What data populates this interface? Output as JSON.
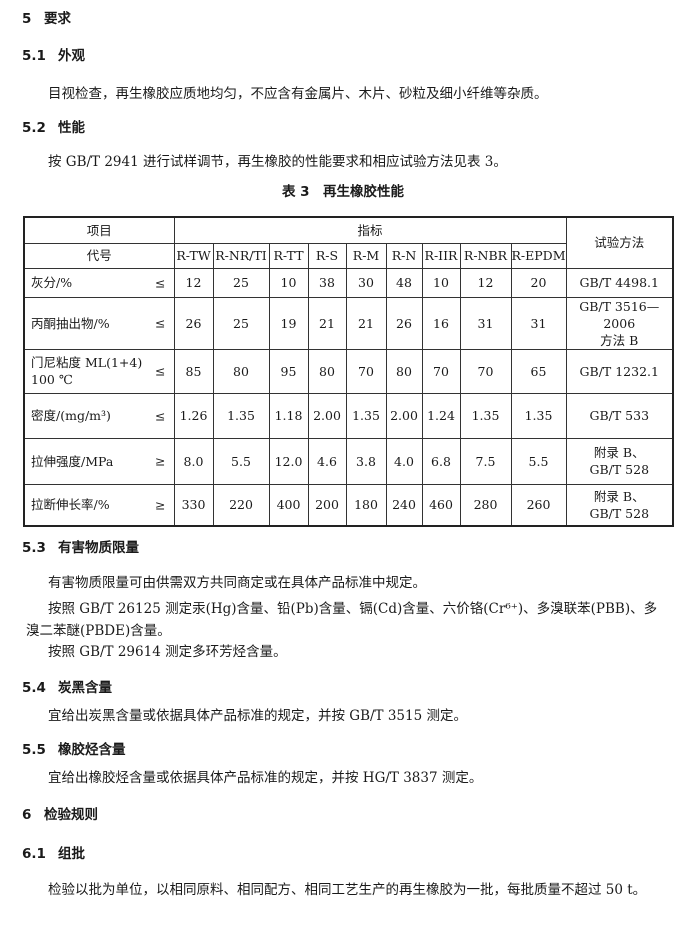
{
  "sections": {
    "s5": {
      "num": "5",
      "title": "要求"
    },
    "s51": {
      "num": "5.1",
      "title": "外观",
      "text": "目视检查，再生橡胶应质地均匀，不应含有金属片、木片、砂粒及细小纤维等杂质。"
    },
    "s52": {
      "num": "5.2",
      "title": "性能",
      "text": "按 GB/T 2941 进行试样调节，再生橡胶的性能要求和相应试验方法见表 3。"
    },
    "s53": {
      "num": "5.3",
      "title": "有害物质限量",
      "lines": [
        "有害物质限量可由供需双方共同商定或在具体产品标准中规定。",
        "按照 GB/T 26125 测定汞(Hg)含量、铅(Pb)含量、镉(Cd)含量、六价铬(Cr⁶⁺)、多溴联苯(PBB)、多",
        "溴二苯醚(PBDE)含量。",
        "按照 GB/T 29614 测定多环芳烃含量。"
      ]
    },
    "s54": {
      "num": "5.4",
      "title": "炭黑含量",
      "text": "宜给出炭黑含量或依据具体产品标准的规定，并按 GB/T 3515 测定。"
    },
    "s55": {
      "num": "5.5",
      "title": "橡胶烃含量",
      "text": "宜给出橡胶烃含量或依据具体产品标准的规定，并按 HG/T 3837 测定。"
    },
    "s6": {
      "num": "6",
      "title": "检验规则"
    },
    "s61": {
      "num": "6.1",
      "title": "组批",
      "text": "检验以批为单位，以相同原料、相同配方、相同工艺生产的再生橡胶为一批，每批质量不超过 50 t。"
    }
  },
  "table": {
    "caption": "表 3　再生橡胶性能",
    "h_item": "项目",
    "h_index": "指标",
    "h_method": "试验方法",
    "h_code": "代号",
    "codes": [
      "R-TW",
      "R-NR/TI",
      "R-TT",
      "R-S",
      "R-M",
      "R-N",
      "R-IIR",
      "R-NBR",
      "R-EPDM"
    ],
    "rows": [
      {
        "label": "灰分/%",
        "label2": "",
        "op": "≤",
        "values": [
          "12",
          "25",
          "10",
          "38",
          "30",
          "48",
          "10",
          "12",
          "20"
        ],
        "method": "GB/T 4498.1",
        "method2": ""
      },
      {
        "label": "丙酮抽出物/%",
        "label2": "",
        "op": "≤",
        "values": [
          "26",
          "25",
          "19",
          "21",
          "21",
          "26",
          "16",
          "31",
          "31"
        ],
        "method": "GB/T 3516—2006",
        "method2": "方法 B"
      },
      {
        "label": "门尼粘度 ML(1+4)",
        "label2": "100 ℃",
        "op": "≤",
        "values": [
          "85",
          "80",
          "95",
          "80",
          "70",
          "80",
          "70",
          "70",
          "65"
        ],
        "method": "GB/T 1232.1",
        "method2": ""
      },
      {
        "label": "密度/(mg/m³)",
        "label2": "",
        "op": "≤",
        "values": [
          "1.26",
          "1.35",
          "1.18",
          "2.00",
          "1.35",
          "2.00",
          "1.24",
          "1.35",
          "1.35"
        ],
        "method": "GB/T 533",
        "method2": ""
      },
      {
        "label": "拉伸强度/MPa",
        "label2": "",
        "op": "≥",
        "values": [
          "8.0",
          "5.5",
          "12.0",
          "4.6",
          "3.8",
          "4.0",
          "6.8",
          "7.5",
          "5.5"
        ],
        "method": "附录 B、",
        "method2": "GB/T 528"
      },
      {
        "label": "拉断伸长率/%",
        "label2": "",
        "op": "≥",
        "values": [
          "330",
          "220",
          "400",
          "200",
          "180",
          "240",
          "460",
          "280",
          "260"
        ],
        "method": "附录 B、",
        "method2": "GB/T 528"
      }
    ]
  }
}
